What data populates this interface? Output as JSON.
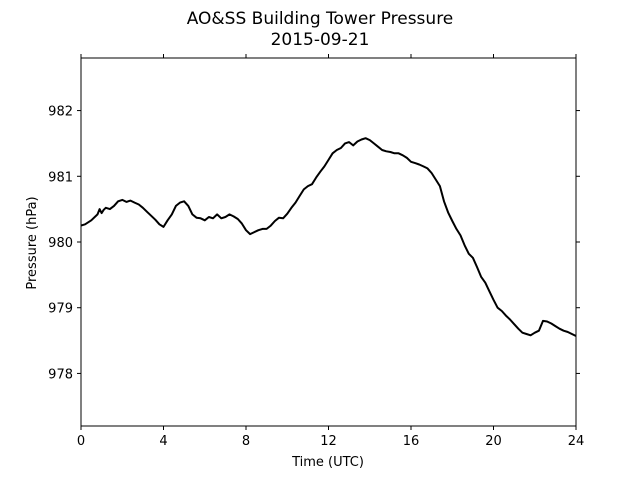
{
  "chart_data": {
    "type": "line",
    "title": "AO&SS Building Tower Pressure",
    "subtitle": "2015-09-21",
    "xlabel": "Time (UTC)",
    "ylabel": "Pressure (hPa)",
    "xlim": [
      0,
      24
    ],
    "ylim": [
      977.2,
      982.8
    ],
    "xticks": [
      0,
      4,
      8,
      12,
      16,
      20,
      24
    ],
    "yticks": [
      978,
      979,
      980,
      981,
      982
    ],
    "grid": false,
    "line_color": "#000000",
    "series": [
      {
        "x": [
          0,
          0.2,
          0.5,
          0.8,
          0.9,
          1.0,
          1.1,
          1.2,
          1.4,
          1.6,
          1.8,
          2.0,
          2.2,
          2.4,
          2.6,
          2.8,
          3.0,
          3.2,
          3.4,
          3.6,
          3.8,
          4.0,
          4.2,
          4.4,
          4.6,
          4.8,
          5.0,
          5.2,
          5.4,
          5.6,
          5.8,
          6.0,
          6.2,
          6.4,
          6.6,
          6.8,
          7.0,
          7.2,
          7.4,
          7.6,
          7.8,
          8.0,
          8.2,
          8.4,
          8.6,
          8.8,
          9.0,
          9.2,
          9.4,
          9.6,
          9.8,
          10.0,
          10.2,
          10.4,
          10.6,
          10.8,
          11.0,
          11.2,
          11.4,
          11.6,
          11.8,
          12.0,
          12.2,
          12.4,
          12.6,
          12.8,
          13.0,
          13.2,
          13.4,
          13.6,
          13.8,
          14.0,
          14.2,
          14.4,
          14.6,
          14.8,
          15.0,
          15.2,
          15.4,
          15.6,
          15.8,
          16.0,
          16.2,
          16.4,
          16.6,
          16.8,
          17.0,
          17.2,
          17.4,
          17.6,
          17.8,
          18.0,
          18.2,
          18.4,
          18.6,
          18.8,
          19.0,
          19.2,
          19.4,
          19.6,
          19.8,
          20.0,
          20.2,
          20.4,
          20.6,
          20.8,
          21.0,
          21.2,
          21.4,
          21.6,
          21.8,
          22.0,
          22.2,
          22.4,
          22.6,
          22.8,
          23.0,
          23.2,
          23.4,
          23.6,
          23.8,
          24.0
        ],
        "values": [
          980.25,
          980.27,
          980.33,
          980.42,
          980.5,
          980.44,
          980.49,
          980.52,
          980.5,
          980.55,
          980.62,
          980.64,
          980.61,
          980.63,
          980.6,
          980.57,
          980.52,
          980.46,
          980.4,
          980.34,
          980.27,
          980.23,
          980.33,
          980.42,
          980.55,
          980.6,
          980.62,
          980.55,
          980.42,
          980.37,
          980.36,
          980.33,
          980.38,
          980.36,
          980.42,
          980.36,
          980.38,
          980.42,
          980.39,
          980.35,
          980.28,
          980.18,
          980.12,
          980.15,
          980.18,
          980.2,
          980.2,
          980.25,
          980.32,
          980.37,
          980.36,
          980.43,
          980.52,
          980.6,
          980.7,
          980.8,
          980.85,
          980.88,
          980.98,
          981.07,
          981.15,
          981.25,
          981.35,
          981.4,
          981.43,
          981.5,
          981.52,
          981.47,
          981.53,
          981.56,
          981.58,
          981.55,
          981.5,
          981.45,
          981.4,
          981.38,
          981.37,
          981.35,
          981.35,
          981.32,
          981.28,
          981.22,
          981.2,
          981.18,
          981.15,
          981.12,
          981.05,
          980.95,
          980.85,
          980.62,
          980.45,
          980.32,
          980.2,
          980.1,
          979.95,
          979.82,
          979.76,
          979.62,
          979.47,
          979.38,
          979.25,
          979.12,
          979.0,
          978.95,
          978.88,
          978.82,
          978.75,
          978.68,
          978.62,
          978.6,
          978.58,
          978.62,
          978.65,
          978.8,
          978.79,
          978.76,
          978.72,
          978.68,
          978.65,
          978.63,
          978.6,
          978.57
        ]
      }
    ]
  }
}
